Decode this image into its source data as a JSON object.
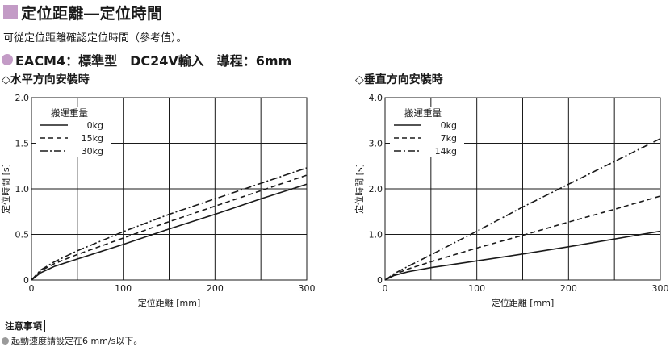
{
  "header": {
    "title": "定位距離―定位時間",
    "subtitle": "可從定位距離確認定位時間（參考值）。",
    "model": "EACM4：標準型　DC24V輸入　導程：6mm"
  },
  "notes": {
    "heading": "注意事項",
    "text": "起動速度請設定在6 mm/s以下。"
  },
  "colors": {
    "accent": "#c39bc6",
    "line": "#1a1a1a",
    "grid": "#1a1a1a",
    "note_dot": "#9a9a9a"
  },
  "chart_data": [
    {
      "type": "line",
      "title": "◇水平方向安裝時",
      "xlabel": "定位距離 [mm]",
      "ylabel": "定位時間 [s]",
      "xlim": [
        0,
        300
      ],
      "ylim": [
        0,
        2.0
      ],
      "xticks": [
        0,
        100,
        200,
        300
      ],
      "xtick_labels": [
        "0",
        "100",
        "200",
        "300"
      ],
      "xgrid": [
        0,
        50,
        100,
        150,
        200,
        250,
        300
      ],
      "yticks": [
        0,
        0.5,
        1.0,
        1.5,
        2.0
      ],
      "ytick_labels": [
        "0",
        "0.5",
        "1.0",
        "1.5",
        "2.0"
      ],
      "grid": true,
      "legend_title": "搬運重量",
      "legend_position": "top-left",
      "series": [
        {
          "name": "0kg",
          "dash": "solid",
          "x": [
            0,
            10,
            25,
            50,
            100,
            150,
            200,
            250,
            300
          ],
          "y": [
            0,
            0.08,
            0.15,
            0.23,
            0.39,
            0.56,
            0.72,
            0.89,
            1.05
          ]
        },
        {
          "name": "15kg",
          "dash": "dash",
          "x": [
            0,
            10,
            25,
            50,
            100,
            150,
            200,
            250,
            300
          ],
          "y": [
            0,
            0.1,
            0.18,
            0.28,
            0.46,
            0.64,
            0.81,
            0.98,
            1.15
          ]
        },
        {
          "name": "30kg",
          "dash": "dashdot",
          "x": [
            0,
            10,
            25,
            50,
            100,
            150,
            200,
            250,
            300
          ],
          "y": [
            0,
            0.11,
            0.2,
            0.32,
            0.53,
            0.72,
            0.89,
            1.06,
            1.23
          ]
        }
      ]
    },
    {
      "type": "line",
      "title": "◇垂直方向安裝時",
      "xlabel": "定位距離 [mm]",
      "ylabel": "定位時間 [s]",
      "xlim": [
        0,
        300
      ],
      "ylim": [
        0,
        4.0
      ],
      "xticks": [
        0,
        100,
        200,
        300
      ],
      "xtick_labels": [
        "0",
        "100",
        "200",
        "300"
      ],
      "xgrid": [
        0,
        50,
        100,
        150,
        200,
        250,
        300
      ],
      "yticks": [
        0,
        1.0,
        2.0,
        3.0,
        4.0
      ],
      "ytick_labels": [
        "0",
        "1.0",
        "2.0",
        "3.0",
        "4.0"
      ],
      "grid": true,
      "legend_title": "搬運重量",
      "legend_position": "top-left",
      "series": [
        {
          "name": "0kg",
          "dash": "solid",
          "x": [
            0,
            10,
            25,
            50,
            100,
            150,
            200,
            250,
            300
          ],
          "y": [
            0,
            0.1,
            0.18,
            0.27,
            0.42,
            0.57,
            0.73,
            0.9,
            1.07
          ]
        },
        {
          "name": "7kg",
          "dash": "dash",
          "x": [
            0,
            10,
            25,
            50,
            100,
            150,
            200,
            250,
            300
          ],
          "y": [
            0,
            0.12,
            0.24,
            0.4,
            0.7,
            0.98,
            1.27,
            1.55,
            1.84
          ]
        },
        {
          "name": "14kg",
          "dash": "dashdot",
          "x": [
            0,
            10,
            25,
            50,
            100,
            150,
            200,
            250,
            300
          ],
          "y": [
            0,
            0.14,
            0.3,
            0.55,
            1.07,
            1.6,
            2.1,
            2.6,
            3.1
          ]
        }
      ]
    }
  ]
}
